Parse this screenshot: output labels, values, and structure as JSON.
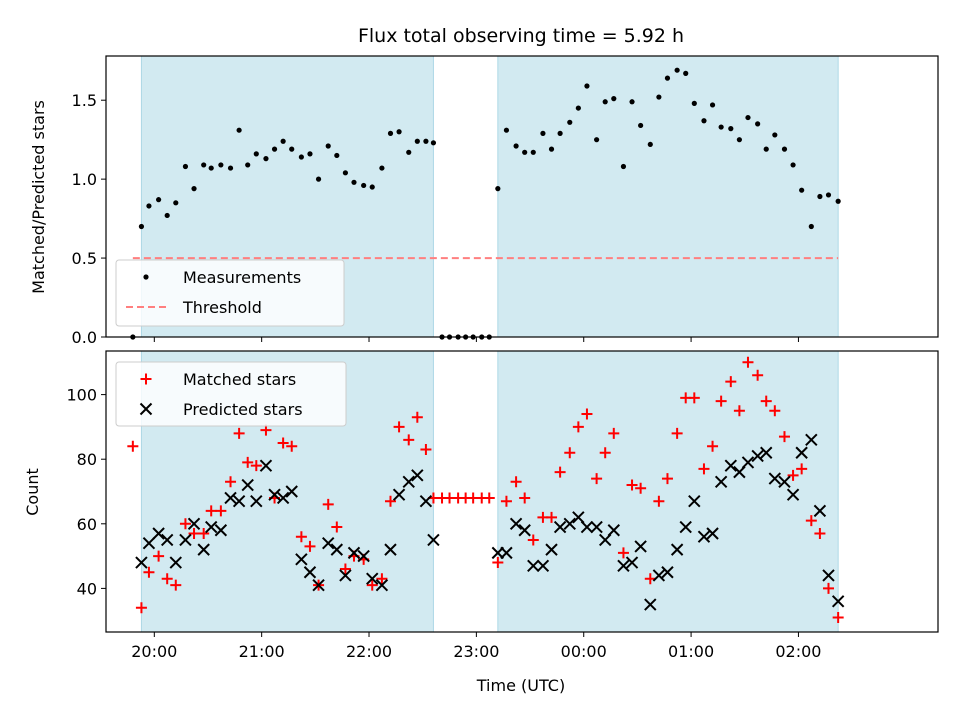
{
  "chart_data": [
    {
      "type": "scatter",
      "title": "Flux total observing time = 5.92 h",
      "xlabel": "",
      "ylabel": "Matched/Predicted stars",
      "xlim": [
        19.55,
        27.3
      ],
      "ylim": [
        0,
        1.78
      ],
      "x_tick_values": [
        20,
        21,
        22,
        23,
        24,
        25,
        26
      ],
      "y_tick_values": [
        0.0,
        0.5,
        1.0,
        1.5
      ],
      "y_tick_labels": [
        "0.0",
        "0.5",
        "1.0",
        "1.5"
      ],
      "shaded_intervals": [
        [
          19.88,
          22.6
        ],
        [
          23.2,
          26.37
        ]
      ],
      "shade_color": "#add8e6",
      "legend_position": "lower left",
      "series": [
        {
          "name": "Measurements",
          "marker": "dot",
          "color": "#000000",
          "x": [
            19.8,
            19.88,
            19.95,
            20.04,
            20.12,
            20.2,
            20.29,
            20.37,
            20.46,
            20.53,
            20.62,
            20.71,
            20.79,
            20.87,
            20.95,
            21.04,
            21.12,
            21.2,
            21.28,
            21.37,
            21.45,
            21.53,
            21.62,
            21.7,
            21.78,
            21.86,
            21.95,
            22.03,
            22.12,
            22.2,
            22.28,
            22.37,
            22.45,
            22.53,
            22.6,
            22.68,
            22.75,
            22.83,
            22.9,
            22.97,
            23.05,
            23.12,
            23.2,
            23.28,
            23.37,
            23.45,
            23.53,
            23.62,
            23.7,
            23.78,
            23.87,
            23.95,
            24.03,
            24.12,
            24.2,
            24.28,
            24.37,
            24.45,
            24.53,
            24.62,
            24.7,
            24.78,
            24.87,
            24.95,
            25.03,
            25.12,
            25.2,
            25.28,
            25.37,
            25.45,
            25.53,
            25.62,
            25.7,
            25.78,
            25.87,
            25.95,
            26.03,
            26.12,
            26.2,
            26.28,
            26.37
          ],
          "y": [
            0.0,
            0.7,
            0.83,
            0.87,
            0.77,
            0.85,
            1.08,
            0.94,
            1.09,
            1.07,
            1.09,
            1.07,
            1.31,
            1.09,
            1.16,
            1.13,
            1.19,
            1.24,
            1.19,
            1.14,
            1.16,
            1.0,
            1.21,
            1.15,
            1.04,
            0.98,
            0.96,
            0.95,
            1.07,
            1.29,
            1.3,
            1.17,
            1.24,
            1.24,
            1.23,
            0.0,
            0.0,
            0.0,
            0.0,
            0.0,
            0.0,
            0.0,
            0.94,
            1.31,
            1.21,
            1.17,
            1.17,
            1.29,
            1.19,
            1.29,
            1.36,
            1.45,
            1.59,
            1.25,
            1.49,
            1.51,
            1.08,
            1.49,
            1.34,
            1.22,
            1.52,
            1.64,
            1.69,
            1.67,
            1.48,
            1.37,
            1.47,
            1.33,
            1.32,
            1.25,
            1.39,
            1.35,
            1.19,
            1.28,
            1.19,
            1.09,
            0.93,
            0.7,
            0.89,
            0.9,
            0.86
          ]
        },
        {
          "name": "Threshold",
          "line_style": "dashed",
          "color": "#ff7f7f",
          "x": [
            19.8,
            26.37
          ],
          "y": [
            0.5,
            0.5
          ]
        }
      ]
    },
    {
      "type": "scatter",
      "title": "",
      "xlabel": "Time (UTC)",
      "ylabel": "Count",
      "xlim": [
        19.55,
        27.3
      ],
      "ylim": [
        26.5,
        113.5
      ],
      "x_tick_values": [
        20,
        21,
        22,
        23,
        24,
        25,
        26
      ],
      "x_tick_labels": [
        "20:00",
        "21:00",
        "22:00",
        "23:00",
        "00:00",
        "01:00",
        "02:00"
      ],
      "y_tick_values": [
        40,
        60,
        80,
        100
      ],
      "y_tick_labels": [
        "40",
        "60",
        "80",
        "100"
      ],
      "shaded_intervals": [
        [
          19.88,
          22.6
        ],
        [
          23.2,
          26.37
        ]
      ],
      "shade_color": "#add8e6",
      "legend_position": "upper left",
      "series": [
        {
          "name": "Matched stars",
          "marker": "plus",
          "color": "#ff0000",
          "x": [
            19.8,
            19.88,
            19.95,
            20.04,
            20.12,
            20.2,
            20.29,
            20.37,
            20.46,
            20.53,
            20.62,
            20.71,
            20.79,
            20.87,
            20.95,
            21.04,
            21.12,
            21.2,
            21.28,
            21.37,
            21.45,
            21.53,
            21.62,
            21.7,
            21.78,
            21.86,
            21.95,
            22.03,
            22.12,
            22.2,
            22.28,
            22.37,
            22.45,
            22.53,
            22.6,
            22.68,
            22.75,
            22.83,
            22.9,
            22.97,
            23.05,
            23.12,
            23.2,
            23.28,
            23.37,
            23.45,
            23.53,
            23.62,
            23.7,
            23.78,
            23.87,
            23.95,
            24.03,
            24.12,
            24.2,
            24.28,
            24.37,
            24.45,
            24.53,
            24.62,
            24.7,
            24.78,
            24.87,
            24.95,
            25.03,
            25.12,
            25.2,
            25.28,
            25.37,
            25.45,
            25.53,
            25.62,
            25.7,
            25.78,
            25.87,
            25.95,
            26.03,
            26.12,
            26.2,
            26.28,
            26.37
          ],
          "y": [
            84,
            34,
            45,
            50,
            43,
            41,
            60,
            57,
            57,
            64,
            64,
            73,
            88,
            79,
            78,
            89,
            68,
            85,
            84,
            56,
            53,
            41,
            66,
            59,
            46,
            50,
            49,
            41,
            43,
            67,
            90,
            86,
            93,
            83,
            68,
            68,
            68,
            68,
            68,
            68,
            68,
            68,
            48,
            67,
            73,
            68,
            55,
            62,
            62,
            76,
            82,
            90,
            94,
            74,
            82,
            88,
            51,
            72,
            71,
            43,
            67,
            74,
            88,
            99,
            99,
            77,
            84,
            98,
            104,
            95,
            110,
            106,
            98,
            95,
            87,
            75,
            77,
            61,
            57,
            40,
            31
          ]
        },
        {
          "name": "Predicted stars",
          "marker": "x",
          "color": "#000000",
          "x": [
            19.88,
            19.95,
            20.04,
            20.12,
            20.2,
            20.29,
            20.37,
            20.46,
            20.53,
            20.62,
            20.71,
            20.79,
            20.87,
            20.95,
            21.04,
            21.12,
            21.2,
            21.28,
            21.37,
            21.45,
            21.53,
            21.62,
            21.7,
            21.78,
            21.86,
            21.95,
            22.03,
            22.12,
            22.2,
            22.28,
            22.37,
            22.45,
            22.53,
            22.6,
            23.2,
            23.28,
            23.37,
            23.45,
            23.53,
            23.62,
            23.7,
            23.78,
            23.87,
            23.95,
            24.03,
            24.12,
            24.2,
            24.28,
            24.37,
            24.45,
            24.53,
            24.62,
            24.7,
            24.78,
            24.87,
            24.95,
            25.03,
            25.12,
            25.2,
            25.28,
            25.37,
            25.45,
            25.53,
            25.62,
            25.7,
            25.78,
            25.87,
            25.95,
            26.03,
            26.12,
            26.2,
            26.28,
            26.37
          ],
          "y": [
            48,
            54,
            57,
            55,
            48,
            55,
            60,
            52,
            59,
            58,
            68,
            67,
            72,
            67,
            78,
            69,
            68,
            70,
            49,
            45,
            41,
            54,
            52,
            44,
            51,
            50,
            43,
            41,
            52,
            69,
            73,
            75,
            67,
            55,
            51,
            51,
            60,
            58,
            47,
            47,
            52,
            59,
            60,
            62,
            59,
            59,
            55,
            58,
            47,
            48,
            53,
            35,
            44,
            45,
            52,
            59,
            67,
            56,
            57,
            73,
            78,
            76,
            79,
            81,
            82,
            74,
            73,
            69,
            82,
            86,
            64,
            44,
            36
          ]
        }
      ]
    }
  ]
}
